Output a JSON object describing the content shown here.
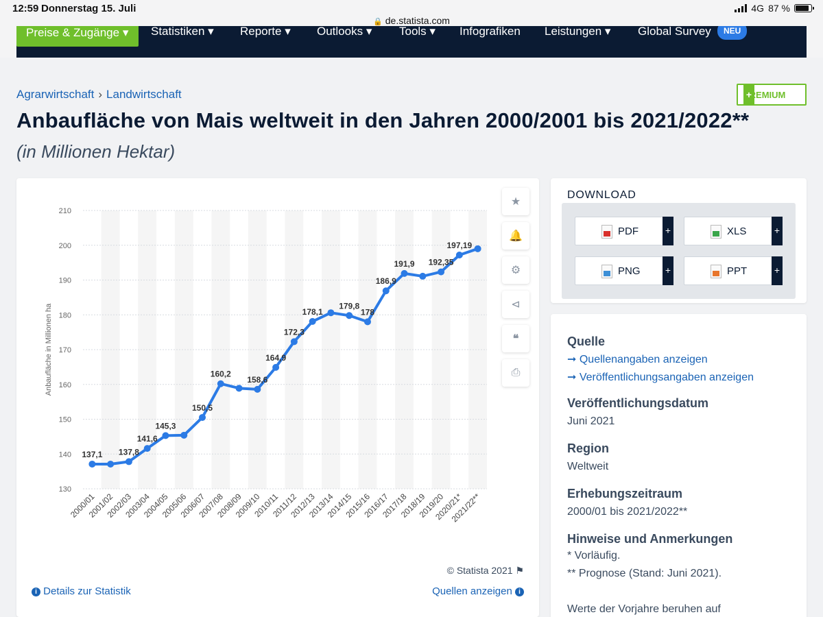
{
  "status_bar": {
    "time": "12:59",
    "date": "Donnerstag 15. Juli",
    "network": "4G",
    "battery": "87 %"
  },
  "browser": {
    "url": "de.statista.com"
  },
  "nav": {
    "items": [
      "Preise & Zugänge",
      "Statistiken",
      "Reporte",
      "Outlooks",
      "Tools",
      "Infografiken",
      "Leistungen",
      "Global Survey"
    ],
    "badge": "NEU"
  },
  "breadcrumb": {
    "first": "Agrarwirtschaft",
    "sep": "›",
    "second": "Landwirtschaft"
  },
  "premium_label": "PREMIUM",
  "premium_plus": "+",
  "page_title": "Anbaufläche von Mais weltweit in den Jahren 2000/2001 bis 2021/2022**",
  "page_subtitle": "(in Millionen Hektar)",
  "chart_data": {
    "type": "line",
    "ylabel": "Anbaufläche in Millionen ha",
    "xlabel": "",
    "ylim": [
      130,
      210
    ],
    "yticks": [
      130,
      140,
      150,
      160,
      170,
      180,
      190,
      200,
      210
    ],
    "grid": true,
    "categories": [
      "2000/01",
      "2001/02",
      "2002/03",
      "2003/04",
      "2004/05",
      "2005/06",
      "2006/07",
      "2007/08",
      "2008/09",
      "2009/10",
      "2010/11",
      "2011/12",
      "2012/13",
      "2013/14",
      "2014/15",
      "2015/16",
      "2016/17",
      "2017/18",
      "2018/19",
      "2019/20",
      "2020/21*",
      "2021/22**"
    ],
    "series": [
      {
        "values": [
          137.1,
          137.1,
          137.8,
          141.6,
          145.3,
          145.4,
          150.5,
          160.2,
          158.9,
          158.6,
          164.9,
          172.3,
          178.1,
          180.6,
          179.8,
          178.0,
          186.9,
          191.9,
          191.1,
          192.35,
          197.19,
          199.0
        ],
        "labels": [
          "137,1",
          "",
          "137,8",
          "141,6",
          "145,3",
          "",
          "150,5",
          "160,2",
          "",
          "158,6",
          "164,9",
          "172,3",
          "178,1",
          "",
          "179,8",
          "178",
          "186,9",
          "191,9",
          "",
          "192,35",
          "197,19",
          ""
        ]
      }
    ],
    "line_color": "#2c7be5"
  },
  "chart_footer": {
    "copyright": "© Statista 2021",
    "details": "Details zur Statistik",
    "sources": "Quellen anzeigen"
  },
  "chart_tools": [
    "star-icon",
    "bell-icon",
    "gear-icon",
    "share-icon",
    "quote-icon",
    "print-icon"
  ],
  "download": {
    "title": "DOWNLOAD",
    "buttons": [
      {
        "label": "PDF",
        "color": "#d9302c"
      },
      {
        "label": "XLS",
        "color": "#3aa64b"
      },
      {
        "label": "PNG",
        "color": "#3d8fd6"
      },
      {
        "label": "PPT",
        "color": "#e8762d"
      }
    ],
    "plus": "+"
  },
  "info": {
    "source_heading": "Quelle",
    "source_link1": "Quellenangaben anzeigen",
    "source_link2": "Veröffentlichungsangaben anzeigen",
    "pubdate_heading": "Veröffentlichungsdatum",
    "pubdate_value": "Juni 2021",
    "region_heading": "Region",
    "region_value": "Weltweit",
    "period_heading": "Erhebungszeitraum",
    "period_value": "2000/01 bis 2021/2022**",
    "notes_heading": "Hinweise und Anmerkungen",
    "note1": "* Vorläufig.",
    "note2": "** Prognose (Stand: Juni 2021).",
    "note3": "Werte der Vorjahre beruhen auf"
  }
}
